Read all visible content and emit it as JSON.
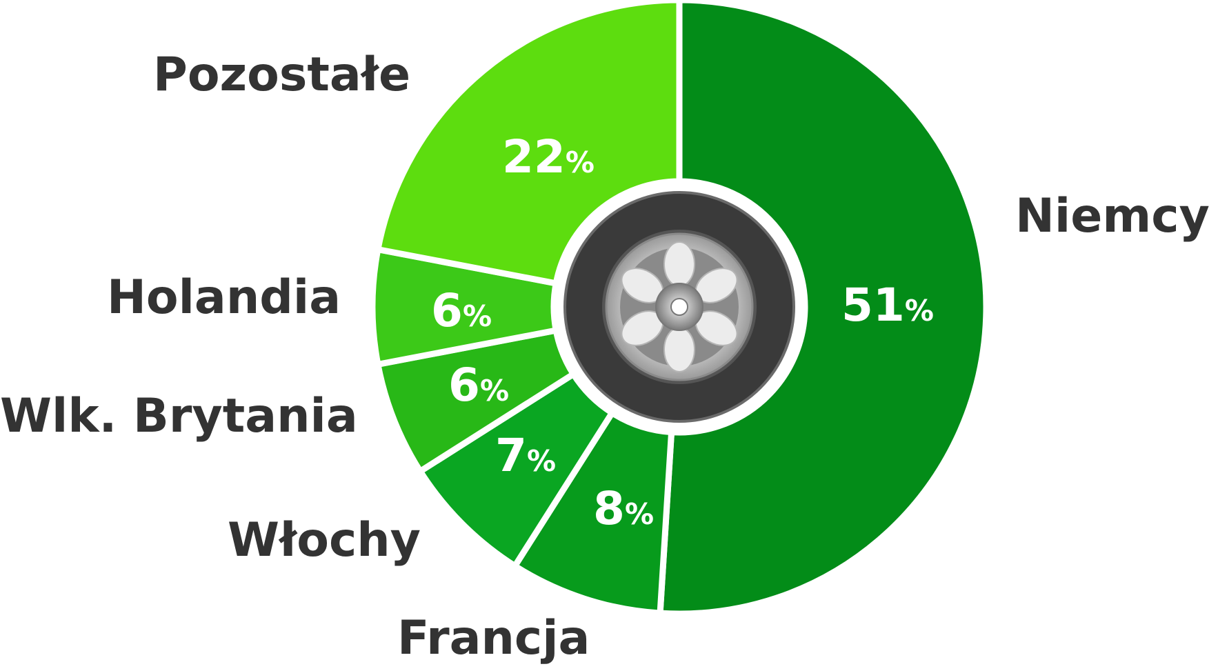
{
  "chart_data": {
    "type": "pie",
    "style": "donut",
    "slices": [
      {
        "label": "Niemcy",
        "value": 51,
        "value_label": "51",
        "unit": "%",
        "color": "#038c18"
      },
      {
        "label": "Francja",
        "value": 8,
        "value_label": "8",
        "unit": "%",
        "color": "#079b1c"
      },
      {
        "label": "Włochy",
        "value": 7,
        "value_label": "7",
        "unit": "%",
        "color": "#0aa622"
      },
      {
        "label": "Wlk. Brytania",
        "value": 6,
        "value_label": "6",
        "unit": "%",
        "color": "#28b817"
      },
      {
        "label": "Holandia",
        "value": 6,
        "value_label": "6",
        "unit": "%",
        "color": "#3cc918"
      },
      {
        "label": "Pozostałe",
        "value": 22,
        "value_label": "22",
        "unit": "%",
        "color": "#5ddd0f"
      }
    ],
    "center_icon": "tire-icon",
    "legend": "none"
  }
}
